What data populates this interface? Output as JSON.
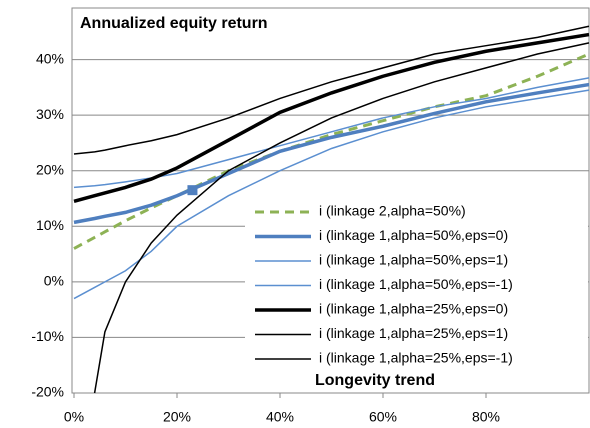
{
  "chart_data": {
    "type": "line",
    "title": "Annualized equity return",
    "xlabel": "Longevity trend",
    "x": [
      0,
      4,
      6,
      10,
      15,
      20,
      30,
      40,
      50,
      60,
      70,
      80,
      90,
      100
    ],
    "series": [
      {
        "name": "i (linkage 2,alpha=50%)",
        "color": "#8db255",
        "width": 3,
        "dash": "9,6",
        "values": [
          6,
          8,
          9,
          11,
          13.3,
          15.5,
          20,
          23.5,
          26.5,
          29,
          31.5,
          33.5,
          37,
          41
        ]
      },
      {
        "name": "i (linkage 1,alpha=50%,eps=0)",
        "color": "#4f7fbf",
        "width": 3.5,
        "dash": "",
        "values": [
          10.7,
          11.4,
          11.8,
          12.5,
          13.8,
          15.5,
          19.5,
          23.5,
          26,
          28,
          30.3,
          32.4,
          34,
          35.5
        ]
      },
      {
        "name": "i (linkage 1,alpha=50%,eps=1)",
        "color": "#5b8fd0",
        "width": 1.5,
        "dash": "",
        "values": [
          17,
          17.3,
          17.5,
          18,
          18.7,
          19.5,
          22,
          24.5,
          27,
          29.5,
          31.5,
          33,
          35,
          36.7
        ]
      },
      {
        "name": "i (linkage 1,alpha=50%,eps=-1)",
        "color": "#5b8fd0",
        "width": 1.5,
        "dash": "",
        "values": [
          -3,
          -1,
          0,
          2,
          5.5,
          10,
          15.5,
          20,
          24,
          27,
          29.5,
          31.5,
          33,
          34.5
        ]
      },
      {
        "name": "i (linkage 1,alpha=25%,eps=0)",
        "color": "#000000",
        "width": 3.5,
        "dash": "",
        "values": [
          14.5,
          15.5,
          16,
          17,
          18.5,
          20.5,
          25.5,
          30.5,
          34,
          37,
          39.5,
          41.5,
          43,
          44.5
        ]
      },
      {
        "name": "i (linkage 1,alpha=25%,eps=1)",
        "color": "#000000",
        "width": 1.5,
        "dash": "",
        "values": [
          23,
          23.4,
          23.7,
          24.5,
          25.4,
          26.5,
          29.5,
          33,
          36,
          38.5,
          41,
          42.5,
          44,
          46
        ]
      },
      {
        "name": "i (linkage 1,alpha=25%,eps=-1)",
        "color": "#000000",
        "width": 1.5,
        "dash": "",
        "values": [
          null,
          -20,
          -9,
          0,
          7,
          12,
          20,
          25,
          29.5,
          33,
          36,
          38.5,
          41,
          43
        ]
      }
    ],
    "marker": {
      "x": 23,
      "y": 16.5,
      "color": "#4f7fbf"
    },
    "xlim": [
      0,
      100
    ],
    "ylim": [
      -20,
      50
    ],
    "xticks": [
      {
        "value": 0,
        "label": "0%"
      },
      {
        "value": 20,
        "label": "20%"
      },
      {
        "value": 40,
        "label": "40%"
      },
      {
        "value": 60,
        "label": "60%"
      },
      {
        "value": 80,
        "label": "80%"
      }
    ],
    "yticks": [
      {
        "value": -20,
        "label": "-20%"
      },
      {
        "value": -10,
        "label": "-10%"
      },
      {
        "value": 0,
        "label": "0%"
      },
      {
        "value": 10,
        "label": "10%"
      },
      {
        "value": 20,
        "label": "20%"
      },
      {
        "value": 30,
        "label": "30%"
      },
      {
        "value": 40,
        "label": "40%"
      }
    ],
    "grid": true,
    "legend": "lower right"
  }
}
